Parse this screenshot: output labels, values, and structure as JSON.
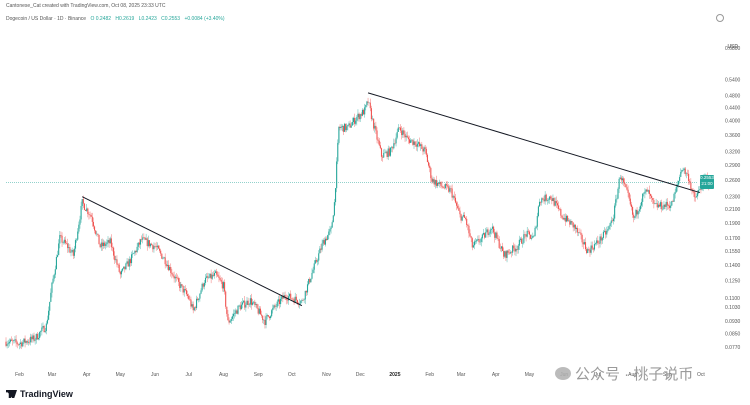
{
  "header": {
    "credit": "Cantonese_Cat created with TradingView.com, Oct 08, 2025 23:33 UTC",
    "symbol": "Dogecoin / US Dollar · 1D · Binance",
    "ohlc": [
      "O 0.2482",
      "H0.2619",
      "L0.2423",
      "C0.2553",
      "+0.0084 (+3.40%)"
    ]
  },
  "currency": "USD",
  "price_badge": {
    "price": "0.2553",
    "countdown": "21:00"
  },
  "branding": {
    "logo_text": "TradingView",
    "watermark": "公众号 · 桃子说币"
  },
  "colors": {
    "up": "#26a69a",
    "down": "#ef5350",
    "trendline": "#131722",
    "price_line": "#26a69a"
  },
  "icons": {
    "settings": "gear-icon"
  },
  "chart_data": {
    "type": "candlestick",
    "title": "",
    "xlabel": "",
    "ylabel": "",
    "y_scale": "log",
    "ylim": [
      0.07,
      0.72
    ],
    "y_ticks": [
      "0.6800",
      "0.5400",
      "0.4800",
      "0.4400",
      "0.4000",
      "0.3600",
      "0.3200",
      "0.2900",
      "0.2600",
      "0.2300",
      "0.2100",
      "0.1900",
      "0.1700",
      "0.1550",
      "0.1400",
      "0.1250",
      "0.1100",
      "0.1030",
      "0.0930",
      "0.0850",
      "0.0770"
    ],
    "x_ticks": [
      "Feb",
      "Mar",
      "Apr",
      "May",
      "Jun",
      "Jul",
      "Aug",
      "Sep",
      "Oct",
      "Nov",
      "Dec",
      "2025",
      "Feb",
      "Mar",
      "Apr",
      "May",
      "Jun",
      "Jul",
      "Aug",
      "Sep",
      "Oct"
    ],
    "x_tick_months": [
      "2024-02",
      "2024-03",
      "2024-04",
      "2024-05",
      "2024-06",
      "2024-07",
      "2024-08",
      "2024-09",
      "2024-10",
      "2024-11",
      "2024-12",
      "2025-01",
      "2025-02",
      "2025-03",
      "2025-04",
      "2025-05",
      "2025-06",
      "2025-07",
      "2025-08",
      "2025-09",
      "2025-10"
    ],
    "last_price": 0.2553,
    "closes": [
      {
        "date": "2024-01-20",
        "close": 0.08
      },
      {
        "date": "2024-02-01",
        "close": 0.079
      },
      {
        "date": "2024-02-15",
        "close": 0.082
      },
      {
        "date": "2024-02-25",
        "close": 0.09
      },
      {
        "date": "2024-03-01",
        "close": 0.12
      },
      {
        "date": "2024-03-08",
        "close": 0.17
      },
      {
        "date": "2024-03-15",
        "close": 0.16
      },
      {
        "date": "2024-03-20",
        "close": 0.15
      },
      {
        "date": "2024-03-28",
        "close": 0.22
      },
      {
        "date": "2024-04-05",
        "close": 0.2
      },
      {
        "date": "2024-04-13",
        "close": 0.16
      },
      {
        "date": "2024-04-22",
        "close": 0.165
      },
      {
        "date": "2024-05-01",
        "close": 0.13
      },
      {
        "date": "2024-05-10",
        "close": 0.145
      },
      {
        "date": "2024-05-20",
        "close": 0.168
      },
      {
        "date": "2024-06-01",
        "close": 0.16
      },
      {
        "date": "2024-06-10",
        "close": 0.145
      },
      {
        "date": "2024-06-20",
        "close": 0.125
      },
      {
        "date": "2024-07-01",
        "close": 0.11
      },
      {
        "date": "2024-07-05",
        "close": 0.1
      },
      {
        "date": "2024-07-15",
        "close": 0.125
      },
      {
        "date": "2024-07-25",
        "close": 0.13
      },
      {
        "date": "2024-08-01",
        "close": 0.12
      },
      {
        "date": "2024-08-05",
        "close": 0.092
      },
      {
        "date": "2024-08-15",
        "close": 0.103
      },
      {
        "date": "2024-08-25",
        "close": 0.108
      },
      {
        "date": "2024-09-01",
        "close": 0.1
      },
      {
        "date": "2024-09-07",
        "close": 0.093
      },
      {
        "date": "2024-09-15",
        "close": 0.102
      },
      {
        "date": "2024-09-25",
        "close": 0.112
      },
      {
        "date": "2024-10-01",
        "close": 0.11
      },
      {
        "date": "2024-10-10",
        "close": 0.107
      },
      {
        "date": "2024-10-20",
        "close": 0.135
      },
      {
        "date": "2024-10-29",
        "close": 0.165
      },
      {
        "date": "2024-11-05",
        "close": 0.18
      },
      {
        "date": "2024-11-08",
        "close": 0.22
      },
      {
        "date": "2024-11-12",
        "close": 0.38
      },
      {
        "date": "2024-11-20",
        "close": 0.38
      },
      {
        "date": "2024-11-28",
        "close": 0.41
      },
      {
        "date": "2024-12-05",
        "close": 0.43
      },
      {
        "date": "2024-12-08",
        "close": 0.46
      },
      {
        "date": "2024-12-12",
        "close": 0.4
      },
      {
        "date": "2024-12-20",
        "close": 0.31
      },
      {
        "date": "2024-12-28",
        "close": 0.32
      },
      {
        "date": "2025-01-05",
        "close": 0.38
      },
      {
        "date": "2025-01-12",
        "close": 0.35
      },
      {
        "date": "2025-01-20",
        "close": 0.34
      },
      {
        "date": "2025-01-28",
        "close": 0.32
      },
      {
        "date": "2025-02-03",
        "close": 0.26
      },
      {
        "date": "2025-02-10",
        "close": 0.25
      },
      {
        "date": "2025-02-20",
        "close": 0.24
      },
      {
        "date": "2025-02-28",
        "close": 0.2
      },
      {
        "date": "2025-03-05",
        "close": 0.195
      },
      {
        "date": "2025-03-11",
        "close": 0.16
      },
      {
        "date": "2025-03-20",
        "close": 0.17
      },
      {
        "date": "2025-03-28",
        "close": 0.185
      },
      {
        "date": "2025-04-05",
        "close": 0.16
      },
      {
        "date": "2025-04-08",
        "close": 0.15
      },
      {
        "date": "2025-04-20",
        "close": 0.16
      },
      {
        "date": "2025-04-28",
        "close": 0.175
      },
      {
        "date": "2025-05-05",
        "close": 0.17
      },
      {
        "date": "2025-05-10",
        "close": 0.225
      },
      {
        "date": "2025-05-20",
        "close": 0.23
      },
      {
        "date": "2025-05-30",
        "close": 0.2
      },
      {
        "date": "2025-06-10",
        "close": 0.185
      },
      {
        "date": "2025-06-22",
        "close": 0.155
      },
      {
        "date": "2025-07-01",
        "close": 0.165
      },
      {
        "date": "2025-07-10",
        "close": 0.18
      },
      {
        "date": "2025-07-15",
        "close": 0.2
      },
      {
        "date": "2025-07-21",
        "close": 0.27
      },
      {
        "date": "2025-07-28",
        "close": 0.23
      },
      {
        "date": "2025-08-02",
        "close": 0.195
      },
      {
        "date": "2025-08-10",
        "close": 0.23
      },
      {
        "date": "2025-08-14",
        "close": 0.24
      },
      {
        "date": "2025-08-20",
        "close": 0.215
      },
      {
        "date": "2025-08-28",
        "close": 0.215
      },
      {
        "date": "2025-09-05",
        "close": 0.218
      },
      {
        "date": "2025-09-10",
        "close": 0.25
      },
      {
        "date": "2025-09-14",
        "close": 0.285
      },
      {
        "date": "2025-09-20",
        "close": 0.265
      },
      {
        "date": "2025-09-25",
        "close": 0.225
      },
      {
        "date": "2025-10-01",
        "close": 0.245
      },
      {
        "date": "2025-10-05",
        "close": 0.265
      },
      {
        "date": "2025-10-08",
        "close": 0.2553
      }
    ],
    "trendlines": [
      {
        "start": {
          "date": "2024-03-28",
          "price": 0.23
        },
        "end": {
          "date": "2024-10-10",
          "price": 0.104
        }
      },
      {
        "start": {
          "date": "2024-12-08",
          "price": 0.49
        },
        "end": {
          "date": "2025-09-30",
          "price": 0.237
        }
      }
    ]
  }
}
